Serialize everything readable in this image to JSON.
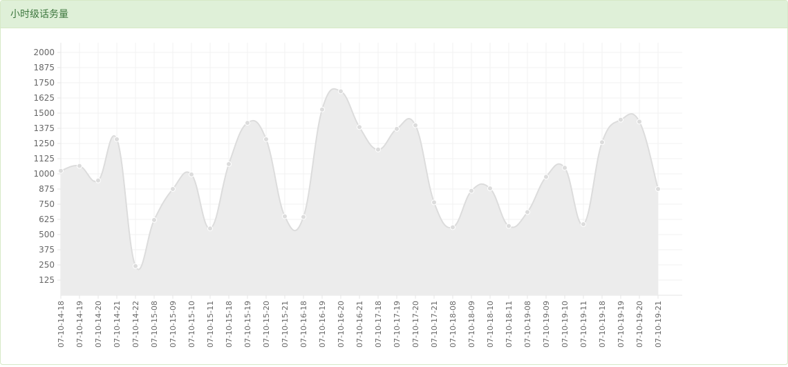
{
  "panel": {
    "title": "小时级话务量",
    "heading_bg": "#dff0d8",
    "heading_color": "#3c763d"
  },
  "chart_data": {
    "type": "area",
    "title": "",
    "xlabel": "",
    "ylabel": "",
    "grid": true,
    "legend": "none",
    "ylim": [
      0,
      2000
    ],
    "yticks": [
      125,
      250,
      375,
      500,
      625,
      750,
      875,
      1000,
      1125,
      1250,
      1375,
      1500,
      1625,
      1750,
      1875,
      2000
    ],
    "categories": [
      "07-10-14-18",
      "07-10-14-19",
      "07-10-14-20",
      "07-10-14-21",
      "07-10-14-22",
      "07-10-15-08",
      "07-10-15-09",
      "07-10-15-10",
      "07-10-15-11",
      "07-10-15-18",
      "07-10-15-19",
      "07-10-15-20",
      "07-10-15-21",
      "07-10-16-18",
      "07-10-16-19",
      "07-10-16-20",
      "07-10-16-21",
      "07-10-17-18",
      "07-10-17-19",
      "07-10-17-20",
      "07-10-17-21",
      "07-10-18-08",
      "07-10-18-09",
      "07-10-18-10",
      "07-10-18-11",
      "07-10-19-08",
      "07-10-19-09",
      "07-10-19-10",
      "07-10-19-11",
      "07-10-19-18",
      "07-10-19-19",
      "07-10-19-20",
      "07-10-19-21"
    ],
    "series": [
      {
        "values": [
          1025,
          1065,
          945,
          1285,
          240,
          620,
          875,
          995,
          550,
          1080,
          1420,
          1285,
          650,
          645,
          1530,
          1680,
          1385,
          1200,
          1370,
          1400,
          765,
          560,
          860,
          880,
          570,
          685,
          975,
          1050,
          585,
          1260,
          1445,
          1430,
          875
        ]
      }
    ],
    "colors": {
      "line": "#dcdcdc",
      "fill": "#ececec",
      "point_fill": "#dcdcdc",
      "point_stroke": "#ffffff",
      "grid": "#f2f2f2",
      "tick_text": "#666666"
    }
  }
}
